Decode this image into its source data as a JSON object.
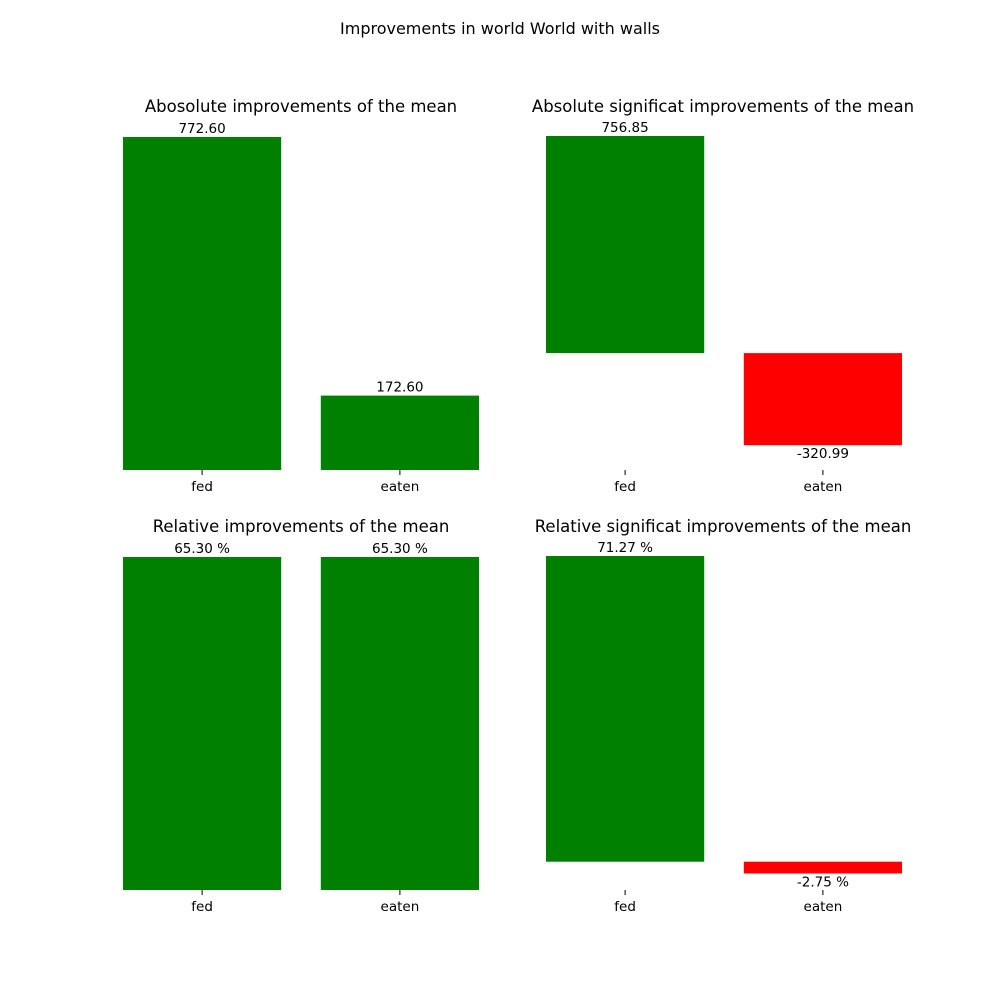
{
  "suptitle": "Improvements in world World with walls",
  "colors": {
    "positive": "#008000",
    "negative": "#ff0000"
  },
  "chart_data": [
    {
      "type": "bar",
      "title": "Abosolute improvements of the mean",
      "categories": [
        "fed",
        "eaten"
      ],
      "values": [
        772.6,
        172.6
      ],
      "labels": [
        "772.60",
        "172.60"
      ],
      "ylim": [
        0,
        772.6
      ]
    },
    {
      "type": "bar",
      "title": "Absolute significat improvements of the mean",
      "categories": [
        "fed",
        "eaten"
      ],
      "values": [
        756.85,
        -320.99
      ],
      "labels": [
        "756.85",
        "-320.99"
      ],
      "ylim": [
        -407.5,
        756.85
      ]
    },
    {
      "type": "bar",
      "title": "Relative improvements of the mean",
      "categories": [
        "fed",
        "eaten"
      ],
      "values": [
        65.3,
        65.3
      ],
      "labels": [
        "65.30 %",
        "65.30 %"
      ],
      "ylim": [
        0,
        65.3
      ]
    },
    {
      "type": "bar",
      "title": "Relative significat improvements of the mean",
      "categories": [
        "fed",
        "eaten"
      ],
      "values": [
        71.27,
        -2.75
      ],
      "labels": [
        "71.27 %",
        "-2.75 %"
      ],
      "ylim": [
        -6.6,
        71.27
      ]
    }
  ]
}
